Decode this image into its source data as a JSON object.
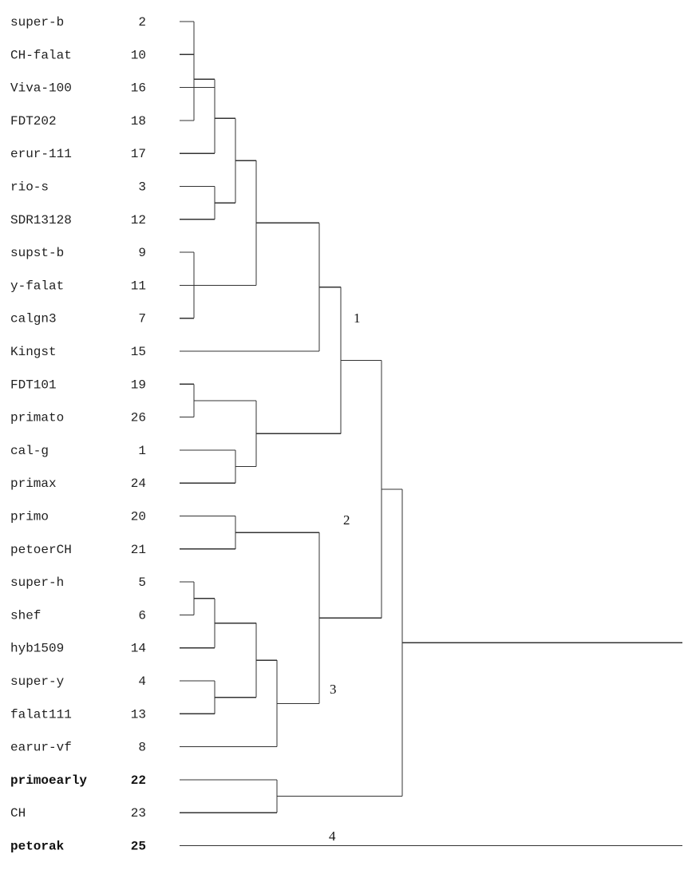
{
  "leaves": [
    {
      "name": "super-b",
      "id": "2",
      "bold": false
    },
    {
      "name": "CH-falat",
      "id": "10",
      "bold": false
    },
    {
      "name": "Viva-100",
      "id": "16",
      "bold": false
    },
    {
      "name": "FDT202",
      "id": "18",
      "bold": false
    },
    {
      "name": "erur-111",
      "id": "17",
      "bold": false
    },
    {
      "name": "rio-s",
      "id": "3",
      "bold": false
    },
    {
      "name": "SDR13128",
      "id": "12",
      "bold": false
    },
    {
      "name": "supst-b",
      "id": "9",
      "bold": false
    },
    {
      "name": "y-falat",
      "id": "11",
      "bold": false
    },
    {
      "name": "calgn3",
      "id": "7",
      "bold": false
    },
    {
      "name": "Kingst",
      "id": "15",
      "bold": false
    },
    {
      "name": "FDT101",
      "id": "19",
      "bold": false
    },
    {
      "name": "primato",
      "id": "26",
      "bold": false
    },
    {
      "name": "cal-g",
      "id": "1",
      "bold": false
    },
    {
      "name": "primax",
      "id": "24",
      "bold": false
    },
    {
      "name": "primo",
      "id": "20",
      "bold": false
    },
    {
      "name": "petoerCH",
      "id": "21",
      "bold": false
    },
    {
      "name": "super-h",
      "id": "5",
      "bold": false
    },
    {
      "name": "shef",
      "id": "6",
      "bold": false
    },
    {
      "name": "hyb1509",
      "id": "14",
      "bold": false
    },
    {
      "name": "super-y",
      "id": "4",
      "bold": false
    },
    {
      "name": "falat111",
      "id": "13",
      "bold": false
    },
    {
      "name": "earur-vf",
      "id": "8",
      "bold": false
    },
    {
      "name": "primoearly",
      "id": "22",
      "bold": true
    },
    {
      "name": "CH",
      "id": "23",
      "bold": false
    },
    {
      "name": "petorak",
      "id": "25",
      "bold": true
    }
  ],
  "cluster_labels": [
    "1",
    "2",
    "3",
    "4"
  ]
}
